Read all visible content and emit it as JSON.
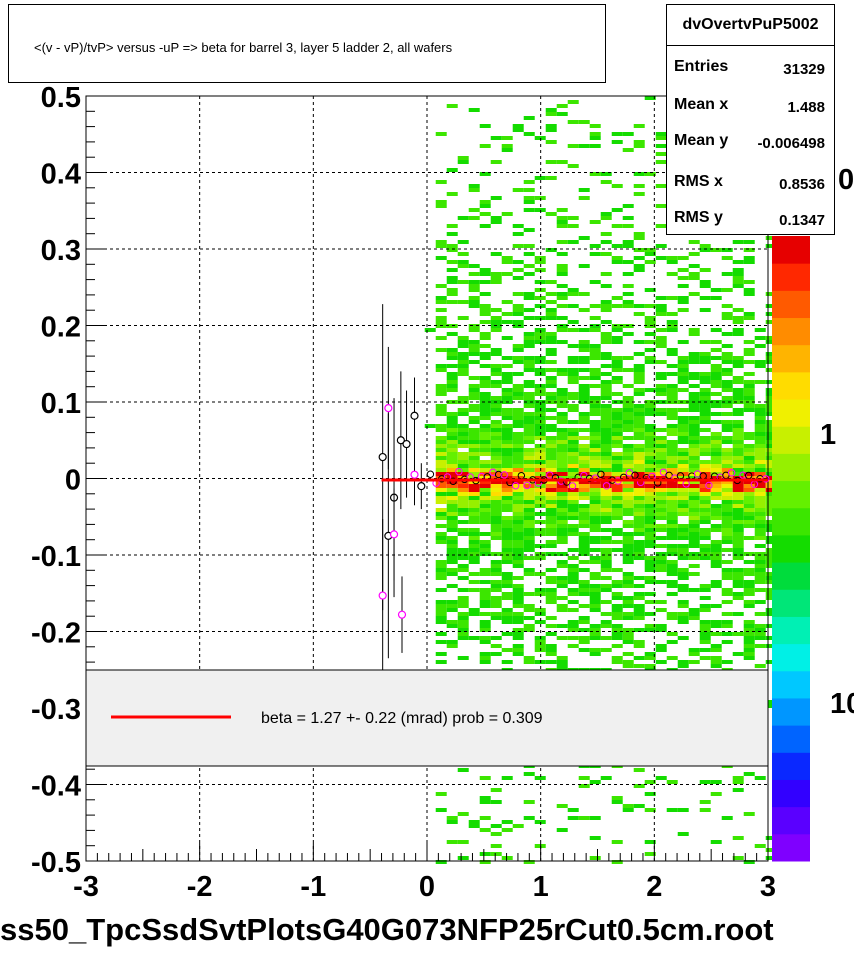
{
  "chart_data": {
    "type": "heatmap",
    "title": "<(v - vP)/tvP> versus  -uP => beta for barrel 3, layer 5 ladder 2, all wafers",
    "xlim": [
      -3,
      3
    ],
    "ylim": [
      -0.5,
      0.5
    ],
    "xticks": [
      "-3",
      "-2",
      "-1",
      "0",
      "1",
      "2",
      "3"
    ],
    "yticks": [
      "-0.5",
      "-0.4",
      "-0.3",
      "-0.2",
      "-0.1",
      "0",
      "0.1",
      "0.2",
      "0.3",
      "0.4",
      "0.5"
    ],
    "grid": true,
    "log_z": true,
    "zticks_visible": [
      "0",
      "1",
      "10"
    ],
    "stats": {
      "name": "dvOvertvPuP5002",
      "rows": [
        {
          "key": "Entries",
          "value": "31329"
        },
        {
          "key": "Mean x",
          "value": "1.488"
        },
        {
          "key": "Mean y",
          "value": "-0.006498"
        },
        {
          "key": "RMS x",
          "value": "0.8536"
        },
        {
          "key": "RMS y",
          "value": "0.1347"
        }
      ]
    },
    "profile_black": [
      {
        "x": -0.39,
        "y": 0.028,
        "err": 0.2
      },
      {
        "x": -0.34,
        "y": -0.075,
        "err": 0.16
      },
      {
        "x": -0.29,
        "y": -0.025,
        "err": 0.13
      },
      {
        "x": -0.23,
        "y": 0.05,
        "err": 0.09
      },
      {
        "x": -0.18,
        "y": 0.045,
        "err": 0.07
      },
      {
        "x": -0.11,
        "y": 0.082,
        "err": 0.05
      },
      {
        "x": -0.05,
        "y": -0.01,
        "err": 0.03
      }
    ],
    "profile_magenta": [
      {
        "x": -0.39,
        "y": -0.153,
        "err": 0.1
      },
      {
        "x": -0.34,
        "y": 0.092,
        "err": 0.08
      },
      {
        "x": -0.29,
        "y": -0.073,
        "err": 0.06
      },
      {
        "x": -0.22,
        "y": -0.178,
        "err": 0.05
      },
      {
        "x": -0.11,
        "y": 0.005,
        "err": 0.04
      }
    ],
    "fit": {
      "x0": -0.4,
      "x1": 3.0,
      "y": -0.002,
      "color": "#ff0000"
    },
    "legend": {
      "text": "beta =    1.27 +-  0.22 (mrad) prob = 0.309",
      "placement": "bottom"
    },
    "colors": {
      "palette": [
        "#7f00ff",
        "#5a00ff",
        "#3200ff",
        "#0a28ff",
        "#0064ff",
        "#0096ff",
        "#00c8ff",
        "#00f0e6",
        "#00f0b4",
        "#00e678",
        "#00dc3c",
        "#14dc00",
        "#3ce600",
        "#64f000",
        "#96f000",
        "#c8f000",
        "#f0f000",
        "#ffdc00",
        "#ffb400",
        "#ff8c00",
        "#ff5a00",
        "#ff2800",
        "#e60000"
      ],
      "fit": "#ff0000",
      "magenta": "#ff00ff"
    }
  },
  "file_label": "ss50_TpcSsdSvtPlotsG40G073NFP25rCut0.5cm.root"
}
